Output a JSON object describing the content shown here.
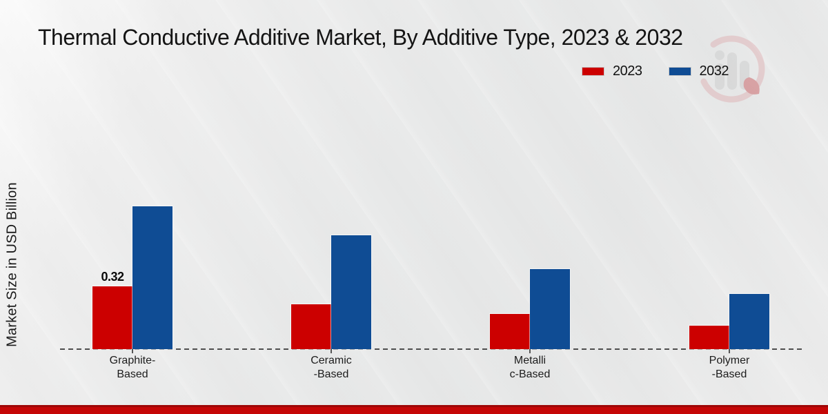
{
  "title": "Thermal Conductive Additive Market, By Additive Type, 2023 & 2032",
  "y_axis_label": "Market Size in USD Billion",
  "legend": {
    "position": "top-right",
    "items": [
      {
        "label": "2023",
        "color": "#cc0000"
      },
      {
        "label": "2032",
        "color": "#0f4c94"
      }
    ]
  },
  "colors": {
    "bar_2023": "#cc0000",
    "bar_2032": "#0f4c94",
    "footer_band": "#c50606",
    "baseline": "#4d4d4d",
    "background": "#e9eaea"
  },
  "footer": {
    "band": true
  },
  "watermark": {
    "name": "market-research-logo"
  },
  "chart_data": {
    "type": "bar",
    "title": "Thermal Conductive Additive Market, By Additive Type, 2023 & 2032",
    "xlabel": "",
    "ylabel": "Market Size in USD Billion",
    "unit": "USD Billion",
    "categories": [
      "Graphite-Based",
      "Ceramic-Based",
      "Metallic-Based",
      "Polymer-Based"
    ],
    "category_label_lines": [
      [
        "Graphite-",
        "Based"
      ],
      [
        "Ceramic",
        "-Based"
      ],
      [
        "Metalli",
        "c-Based"
      ],
      [
        "Polymer",
        "-Based"
      ]
    ],
    "series": [
      {
        "name": "2023",
        "color": "#cc0000",
        "values": [
          0.32,
          0.23,
          0.18,
          0.12
        ],
        "data_labels": [
          "0.32",
          null,
          null,
          null
        ]
      },
      {
        "name": "2032",
        "color": "#0f4c94",
        "values": [
          0.73,
          0.58,
          0.41,
          0.28
        ],
        "data_labels": [
          null,
          null,
          null,
          null
        ]
      }
    ],
    "ylim": [
      0,
      0.8
    ],
    "grid": false,
    "y_axis_ticks_visible": false,
    "baseline_style": "dashed",
    "legend_position": "top-right"
  }
}
